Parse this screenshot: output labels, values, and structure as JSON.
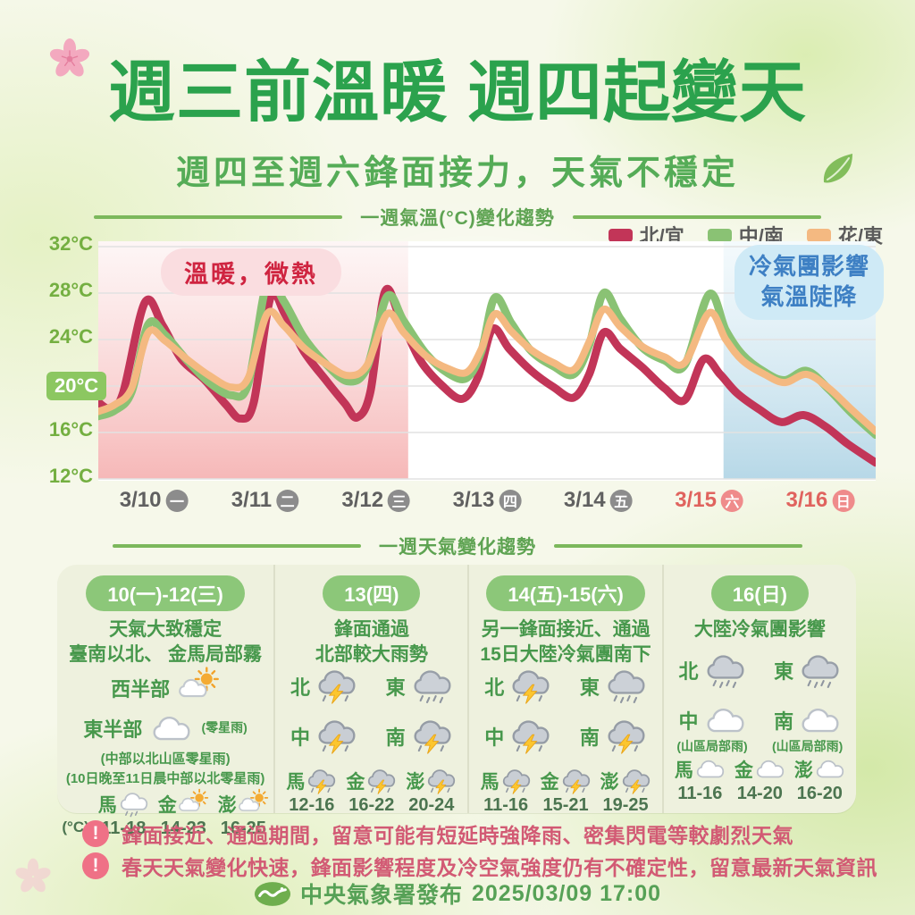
{
  "poster": {
    "title": "週三前溫暖 週四起變天",
    "subtitle": "週四至週六鋒面接力，天氣不穩定",
    "footer": {
      "publisher": "中央氣象署發布",
      "datetime": "2025/03/09 17:00"
    }
  },
  "temp_section": {
    "heading": "一週氣溫(°C)變化趨勢",
    "annotations": {
      "warm": "溫暖，微熱",
      "cold_line1": "冷氣團影響",
      "cold_line2": "氣溫陡降"
    }
  },
  "chart_data": {
    "type": "line",
    "title": "一週氣溫(°C)變化趨勢",
    "ylabel": "°C",
    "ylim": [
      12,
      32
    ],
    "y_ticks": [
      32,
      28,
      24,
      20,
      16,
      12
    ],
    "highlighted_y_tick": 20,
    "grid": true,
    "legend_position": "top-right",
    "x_days": [
      {
        "date": "3/10",
        "weekday": "一",
        "weekend": false
      },
      {
        "date": "3/11",
        "weekday": "二",
        "weekend": false
      },
      {
        "date": "3/12",
        "weekday": "三",
        "weekend": false
      },
      {
        "date": "3/13",
        "weekday": "四",
        "weekend": false
      },
      {
        "date": "3/14",
        "weekday": "五",
        "weekend": false
      },
      {
        "date": "3/15",
        "weekday": "六",
        "weekend": true
      },
      {
        "date": "3/16",
        "weekday": "日",
        "weekend": true
      }
    ],
    "x_range_days": [
      0,
      7
    ],
    "shaded_regions": [
      {
        "label": "warm",
        "from_day": 0,
        "to_day": 2.79,
        "color_top": "rgba(252,238,238,0.55)",
        "color_bottom": "rgba(244,166,166,0.8)"
      },
      {
        "label": "cold",
        "from_day": 5.63,
        "to_day": 7,
        "color_top": "rgba(233,245,250,0.5)",
        "color_bottom": "rgba(170,209,227,0.85)"
      }
    ],
    "series": [
      {
        "name": "北/宜",
        "color": "#c23558",
        "width": 9,
        "points": [
          [
            0,
            18.6
          ],
          [
            0.1,
            18.1
          ],
          [
            0.22,
            19.3
          ],
          [
            0.42,
            27.2
          ],
          [
            0.58,
            25.2
          ],
          [
            0.75,
            22.3
          ],
          [
            0.95,
            20.6
          ],
          [
            1.15,
            18.4
          ],
          [
            1.28,
            17.2
          ],
          [
            1.4,
            18.6
          ],
          [
            1.55,
            27.6
          ],
          [
            1.68,
            26.2
          ],
          [
            1.85,
            23.0
          ],
          [
            2.05,
            20.5
          ],
          [
            2.22,
            18.5
          ],
          [
            2.33,
            17.3
          ],
          [
            2.45,
            19.5
          ],
          [
            2.58,
            28.1
          ],
          [
            2.72,
            25.8
          ],
          [
            2.9,
            22.2
          ],
          [
            3.1,
            20.0
          ],
          [
            3.28,
            18.9
          ],
          [
            3.42,
            20.8
          ],
          [
            3.55,
            24.9
          ],
          [
            3.7,
            23.2
          ],
          [
            3.9,
            21.3
          ],
          [
            4.1,
            19.9
          ],
          [
            4.28,
            19.0
          ],
          [
            4.42,
            21.0
          ],
          [
            4.55,
            24.6
          ],
          [
            4.7,
            23.2
          ],
          [
            4.9,
            21.6
          ],
          [
            5.1,
            19.8
          ],
          [
            5.28,
            18.8
          ],
          [
            5.45,
            22.3
          ],
          [
            5.6,
            21.0
          ],
          [
            5.75,
            19.4
          ],
          [
            5.95,
            18.0
          ],
          [
            6.15,
            16.9
          ],
          [
            6.35,
            17.5
          ],
          [
            6.55,
            16.5
          ],
          [
            6.75,
            15.0
          ],
          [
            7,
            13.4
          ]
        ]
      },
      {
        "name": "中/南",
        "color": "#8ac274",
        "width": 9,
        "points": [
          [
            0,
            17.4
          ],
          [
            0.15,
            17.9
          ],
          [
            0.3,
            19.5
          ],
          [
            0.45,
            25.3
          ],
          [
            0.6,
            24.4
          ],
          [
            0.8,
            22.2
          ],
          [
            1.0,
            20.3
          ],
          [
            1.2,
            19.2
          ],
          [
            1.35,
            20.2
          ],
          [
            1.52,
            28.9
          ],
          [
            1.67,
            27.3
          ],
          [
            1.85,
            24.2
          ],
          [
            2.05,
            21.9
          ],
          [
            2.25,
            20.4
          ],
          [
            2.42,
            21.6
          ],
          [
            2.6,
            27.7
          ],
          [
            2.75,
            25.6
          ],
          [
            2.95,
            22.8
          ],
          [
            3.15,
            21.1
          ],
          [
            3.32,
            20.7
          ],
          [
            3.45,
            23.0
          ],
          [
            3.57,
            27.6
          ],
          [
            3.72,
            25.4
          ],
          [
            3.9,
            23.0
          ],
          [
            4.1,
            21.7
          ],
          [
            4.28,
            21.0
          ],
          [
            4.42,
            23.5
          ],
          [
            4.55,
            28.0
          ],
          [
            4.7,
            25.8
          ],
          [
            4.9,
            23.3
          ],
          [
            5.1,
            22.2
          ],
          [
            5.28,
            21.8
          ],
          [
            5.5,
            27.9
          ],
          [
            5.65,
            24.8
          ],
          [
            5.8,
            22.7
          ],
          [
            6.0,
            21.2
          ],
          [
            6.18,
            20.5
          ],
          [
            6.38,
            21.3
          ],
          [
            6.58,
            19.7
          ],
          [
            6.78,
            17.7
          ],
          [
            7,
            15.8
          ]
        ]
      },
      {
        "name": "花/東",
        "color": "#f4b981",
        "width": 8,
        "points": [
          [
            0,
            17.8
          ],
          [
            0.15,
            18.4
          ],
          [
            0.3,
            19.8
          ],
          [
            0.45,
            24.6
          ],
          [
            0.6,
            23.9
          ],
          [
            0.8,
            22.3
          ],
          [
            1.0,
            20.9
          ],
          [
            1.2,
            19.9
          ],
          [
            1.35,
            20.7
          ],
          [
            1.52,
            26.2
          ],
          [
            1.67,
            25.2
          ],
          [
            1.85,
            23.3
          ],
          [
            2.05,
            21.9
          ],
          [
            2.25,
            20.9
          ],
          [
            2.42,
            21.8
          ],
          [
            2.6,
            26.2
          ],
          [
            2.75,
            24.6
          ],
          [
            2.95,
            22.6
          ],
          [
            3.15,
            21.5
          ],
          [
            3.32,
            21.2
          ],
          [
            3.45,
            23.2
          ],
          [
            3.57,
            26.2
          ],
          [
            3.72,
            24.7
          ],
          [
            3.9,
            23.1
          ],
          [
            4.1,
            22.0
          ],
          [
            4.28,
            21.4
          ],
          [
            4.42,
            23.8
          ],
          [
            4.55,
            26.6
          ],
          [
            4.7,
            25.1
          ],
          [
            4.9,
            23.4
          ],
          [
            5.1,
            22.5
          ],
          [
            5.28,
            22.0
          ],
          [
            5.5,
            26.3
          ],
          [
            5.65,
            24.0
          ],
          [
            5.8,
            22.2
          ],
          [
            6.0,
            21.0
          ],
          [
            6.18,
            20.3
          ],
          [
            6.38,
            21.0
          ],
          [
            6.58,
            19.8
          ],
          [
            6.78,
            18.0
          ],
          [
            7,
            16.1
          ]
        ]
      }
    ]
  },
  "forecast_section": {
    "heading": "一週天氣變化趨勢",
    "temp_unit": "(°C)",
    "columns": [
      {
        "period": "10(一)-12(三)",
        "desc": [
          "天氣大致穩定",
          "臺南以北、 金馬局部霧"
        ],
        "regions": [
          {
            "label": "西半部",
            "icon": "partly-sunny"
          },
          {
            "label": "東半部",
            "icon": "cloudy",
            "note": "(零星雨)"
          }
        ],
        "extra_notes": [
          "(中部以北山區零星雨)",
          "(10日晚至11日晨中部以北零星雨)"
        ],
        "islands": [
          {
            "label": "馬",
            "icon": "drizzle",
            "range": "11-18"
          },
          {
            "label": "金",
            "icon": "partly-sunny",
            "range": "14-23"
          },
          {
            "label": "澎",
            "icon": "partly-sunny",
            "range": "16-25"
          }
        ],
        "show_unit": true
      },
      {
        "period": "13(四)",
        "desc": [
          "鋒面通過",
          "北部較大雨勢"
        ],
        "regions": [
          {
            "label": "北",
            "icon": "thunderstorm"
          },
          {
            "label": "東",
            "icon": "rain"
          },
          {
            "label": "中",
            "icon": "thunderstorm"
          },
          {
            "label": "南",
            "icon": "thunderstorm"
          }
        ],
        "islands": [
          {
            "label": "馬",
            "icon": "thunderstorm",
            "range": "12-16"
          },
          {
            "label": "金",
            "icon": "thunderstorm",
            "range": "16-22"
          },
          {
            "label": "澎",
            "icon": "thunderstorm",
            "range": "20-24"
          }
        ]
      },
      {
        "period": "14(五)-15(六)",
        "desc": [
          "另一鋒面接近、通過",
          "15日大陸冷氣團南下"
        ],
        "regions": [
          {
            "label": "北",
            "icon": "thunderstorm"
          },
          {
            "label": "東",
            "icon": "rain"
          },
          {
            "label": "中",
            "icon": "thunderstorm"
          },
          {
            "label": "南",
            "icon": "thunderstorm"
          }
        ],
        "islands": [
          {
            "label": "馬",
            "icon": "thunderstorm",
            "range": "11-16"
          },
          {
            "label": "金",
            "icon": "thunderstorm",
            "range": "15-21"
          },
          {
            "label": "澎",
            "icon": "thunderstorm",
            "range": "19-25"
          }
        ]
      },
      {
        "period": "16(日)",
        "desc": [
          "大陸冷氣團影響"
        ],
        "regions": [
          {
            "label": "北",
            "icon": "rain"
          },
          {
            "label": "東",
            "icon": "rain"
          },
          {
            "label": "中",
            "icon": "cloudy",
            "note": "(山區局部雨)"
          },
          {
            "label": "南",
            "icon": "cloudy",
            "note": "(山區局部雨)"
          }
        ],
        "islands": [
          {
            "label": "馬",
            "icon": "cloudy",
            "range": "11-16"
          },
          {
            "label": "金",
            "icon": "cloudy",
            "range": "14-20"
          },
          {
            "label": "澎",
            "icon": "cloudy",
            "range": "16-20"
          }
        ]
      }
    ]
  },
  "warnings": [
    "鋒面接近、通過期間，留意可能有短延時強降雨、密集閃電等較劇烈天氣",
    "春天天氣變化快速，鋒面影響程度及冷空氣強度仍有不確定性，留意最新天氣資訊"
  ]
}
